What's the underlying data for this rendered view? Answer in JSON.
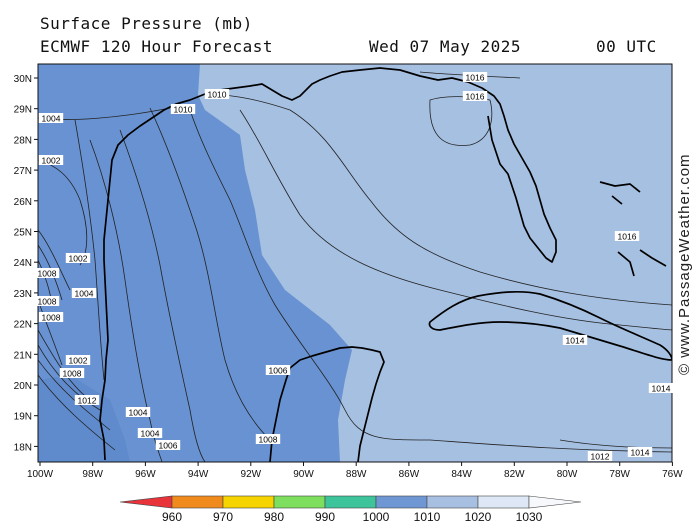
{
  "header": {
    "title": "Surface Pressure (mb)",
    "model": "ECMWF 120 Hour Forecast",
    "valid_date": "Wed 07 May 2025",
    "valid_time": "00 UTC"
  },
  "credit": "© www.PassageWeather.com",
  "lat_labels": [
    "30N",
    "29N",
    "28N",
    "27N",
    "26N",
    "25N",
    "24N",
    "23N",
    "22N",
    "21N",
    "20N",
    "19N",
    "18N"
  ],
  "lon_labels": [
    "100W",
    "98W",
    "96W",
    "94W",
    "92W",
    "90W",
    "88W",
    "86W",
    "84W",
    "82W",
    "80W",
    "78W",
    "76W"
  ],
  "isobar_labels": [
    "1016",
    "1016",
    "1010",
    "1010",
    "1004",
    "1002",
    "1002",
    "1008",
    "1004",
    "1008",
    "1008",
    "1002",
    "1008",
    "1006",
    "1016",
    "1014",
    "1014",
    "1012",
    "1012",
    "1014",
    "1004",
    "1004",
    "1006",
    "1008"
  ],
  "scale": {
    "labels": [
      "960",
      "970",
      "980",
      "990",
      "1000",
      "1010",
      "1020",
      "1030"
    ],
    "colors": [
      "#e8333a",
      "#f08a1c",
      "#f5d400",
      "#7ede5e",
      "#3dc49a",
      "#6f97d4",
      "#a7c0e2",
      "#dde7f5",
      "#f6f8fc"
    ]
  },
  "fill_colors": {
    "deep": "#6892d1",
    "mid": "#a6c0e2",
    "land": "#a6c0e2"
  }
}
